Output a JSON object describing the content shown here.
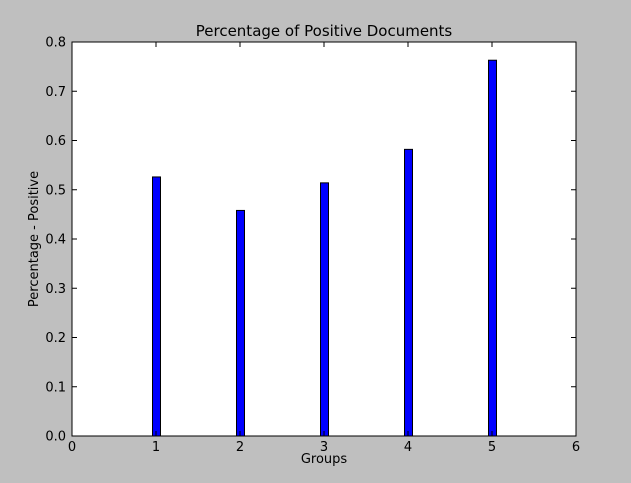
{
  "chart_data": {
    "type": "bar",
    "title": "Percentage of Positive Documents",
    "xlabel": "Groups",
    "ylabel": "Percentage - Positive",
    "x": [
      1,
      2,
      3,
      4,
      5
    ],
    "values": [
      0.526,
      0.458,
      0.514,
      0.582,
      0.763
    ],
    "xlim": [
      0,
      6
    ],
    "ylim": [
      0,
      0.8
    ],
    "xticks": [
      "0",
      "1",
      "2",
      "3",
      "4",
      "5",
      "6"
    ],
    "yticks": [
      "0.0",
      "0.1",
      "0.2",
      "0.3",
      "0.4",
      "0.5",
      "0.6",
      "0.7",
      "0.8"
    ],
    "grid": false,
    "legend": "none",
    "colors": {
      "bar": "#0000ff",
      "bar_edge": "#000000",
      "figure_background": "#bfbfbf",
      "plot_background": "#ffffff"
    }
  }
}
